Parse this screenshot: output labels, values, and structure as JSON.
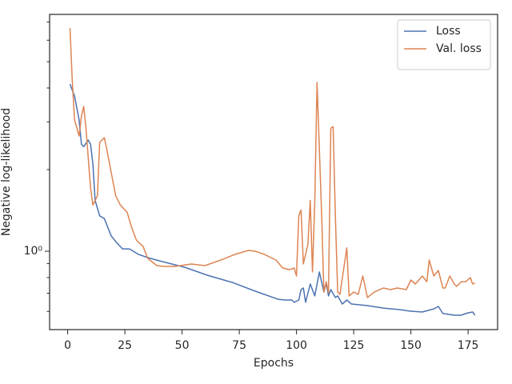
{
  "chart_data": {
    "type": "line",
    "xlabel": "Epochs",
    "ylabel": "Negative log-likelihood",
    "xlim": [
      -7.9,
      187.9
    ],
    "xticks": [
      0,
      25,
      50,
      75,
      100,
      125,
      150,
      175
    ],
    "ylim": [
      0.514,
      7.47
    ],
    "ylog": true,
    "yticks": [
      {
        "value": 1,
        "label": "10⁰"
      }
    ],
    "yminorticks": [
      0.6,
      0.7,
      0.8,
      0.9,
      2,
      3,
      4,
      5,
      6,
      7
    ],
    "legend": "upper right",
    "series": [
      {
        "name": "Loss",
        "color": "#4c72b0",
        "x": [
          1,
          3,
          5,
          6,
          7,
          9,
          10,
          11,
          12,
          14,
          16,
          19,
          21,
          24,
          27,
          31,
          35,
          40,
          51,
          61,
          72,
          82,
          92,
          95,
          98,
          99,
          101,
          102,
          103,
          104,
          106,
          108,
          110,
          112,
          113,
          114,
          115,
          117,
          118,
          120,
          122,
          124,
          131,
          138,
          145,
          150,
          155,
          160,
          162,
          164,
          169,
          172,
          175,
          177,
          178
        ],
        "values": [
          4.13,
          3.73,
          3.05,
          2.48,
          2.43,
          2.57,
          2.48,
          2.1,
          1.54,
          1.35,
          1.32,
          1.14,
          1.085,
          1.02,
          1.02,
          0.973,
          0.947,
          0.922,
          0.873,
          0.816,
          0.767,
          0.712,
          0.665,
          0.661,
          0.661,
          0.648,
          0.661,
          0.722,
          0.732,
          0.648,
          0.757,
          0.684,
          0.838,
          0.707,
          0.762,
          0.684,
          0.722,
          0.675,
          0.684,
          0.639,
          0.661,
          0.639,
          0.63,
          0.617,
          0.609,
          0.601,
          0.597,
          0.613,
          0.626,
          0.589,
          0.581,
          0.581,
          0.593,
          0.597,
          0.581
        ]
      },
      {
        "name": "Val. loss",
        "color": "#dd8452",
        "x": [
          1,
          2,
          3,
          5,
          6,
          7,
          8,
          10,
          11,
          13,
          14,
          16,
          17,
          19,
          21,
          23,
          26,
          28,
          30,
          33,
          35,
          39,
          42,
          47,
          54,
          60,
          68,
          73,
          79,
          82,
          86,
          91,
          94,
          97,
          99,
          100,
          101,
          102,
          103,
          105,
          106,
          107,
          108,
          109,
          111,
          112,
          113,
          114,
          115,
          116,
          117,
          118,
          119,
          122,
          123,
          125,
          127,
          129,
          131,
          134,
          138,
          141,
          144,
          148,
          150,
          152,
          155,
          157,
          158,
          160,
          162,
          164,
          165,
          167,
          169,
          170,
          172,
          174,
          176,
          177,
          178
        ],
        "values": [
          6.65,
          4.28,
          3.05,
          2.66,
          3.15,
          3.42,
          2.84,
          1.71,
          1.48,
          1.6,
          2.52,
          2.62,
          2.4,
          1.96,
          1.6,
          1.48,
          1.39,
          1.22,
          1.1,
          1.04,
          0.941,
          0.885,
          0.879,
          0.879,
          0.897,
          0.885,
          0.935,
          0.973,
          1.007,
          1.0,
          0.973,
          0.928,
          0.867,
          0.855,
          0.867,
          0.81,
          1.35,
          1.42,
          0.897,
          1.06,
          1.54,
          0.838,
          1.54,
          4.19,
          1.35,
          0.707,
          0.772,
          0.703,
          2.84,
          2.88,
          1.35,
          0.707,
          0.693,
          1.03,
          0.684,
          0.707,
          0.693,
          0.81,
          0.675,
          0.707,
          0.732,
          0.722,
          0.732,
          0.722,
          0.783,
          0.757,
          0.81,
          0.772,
          0.928,
          0.81,
          0.849,
          0.732,
          0.732,
          0.81,
          0.757,
          0.742,
          0.772,
          0.772,
          0.799,
          0.757,
          0.762
        ]
      }
    ]
  }
}
